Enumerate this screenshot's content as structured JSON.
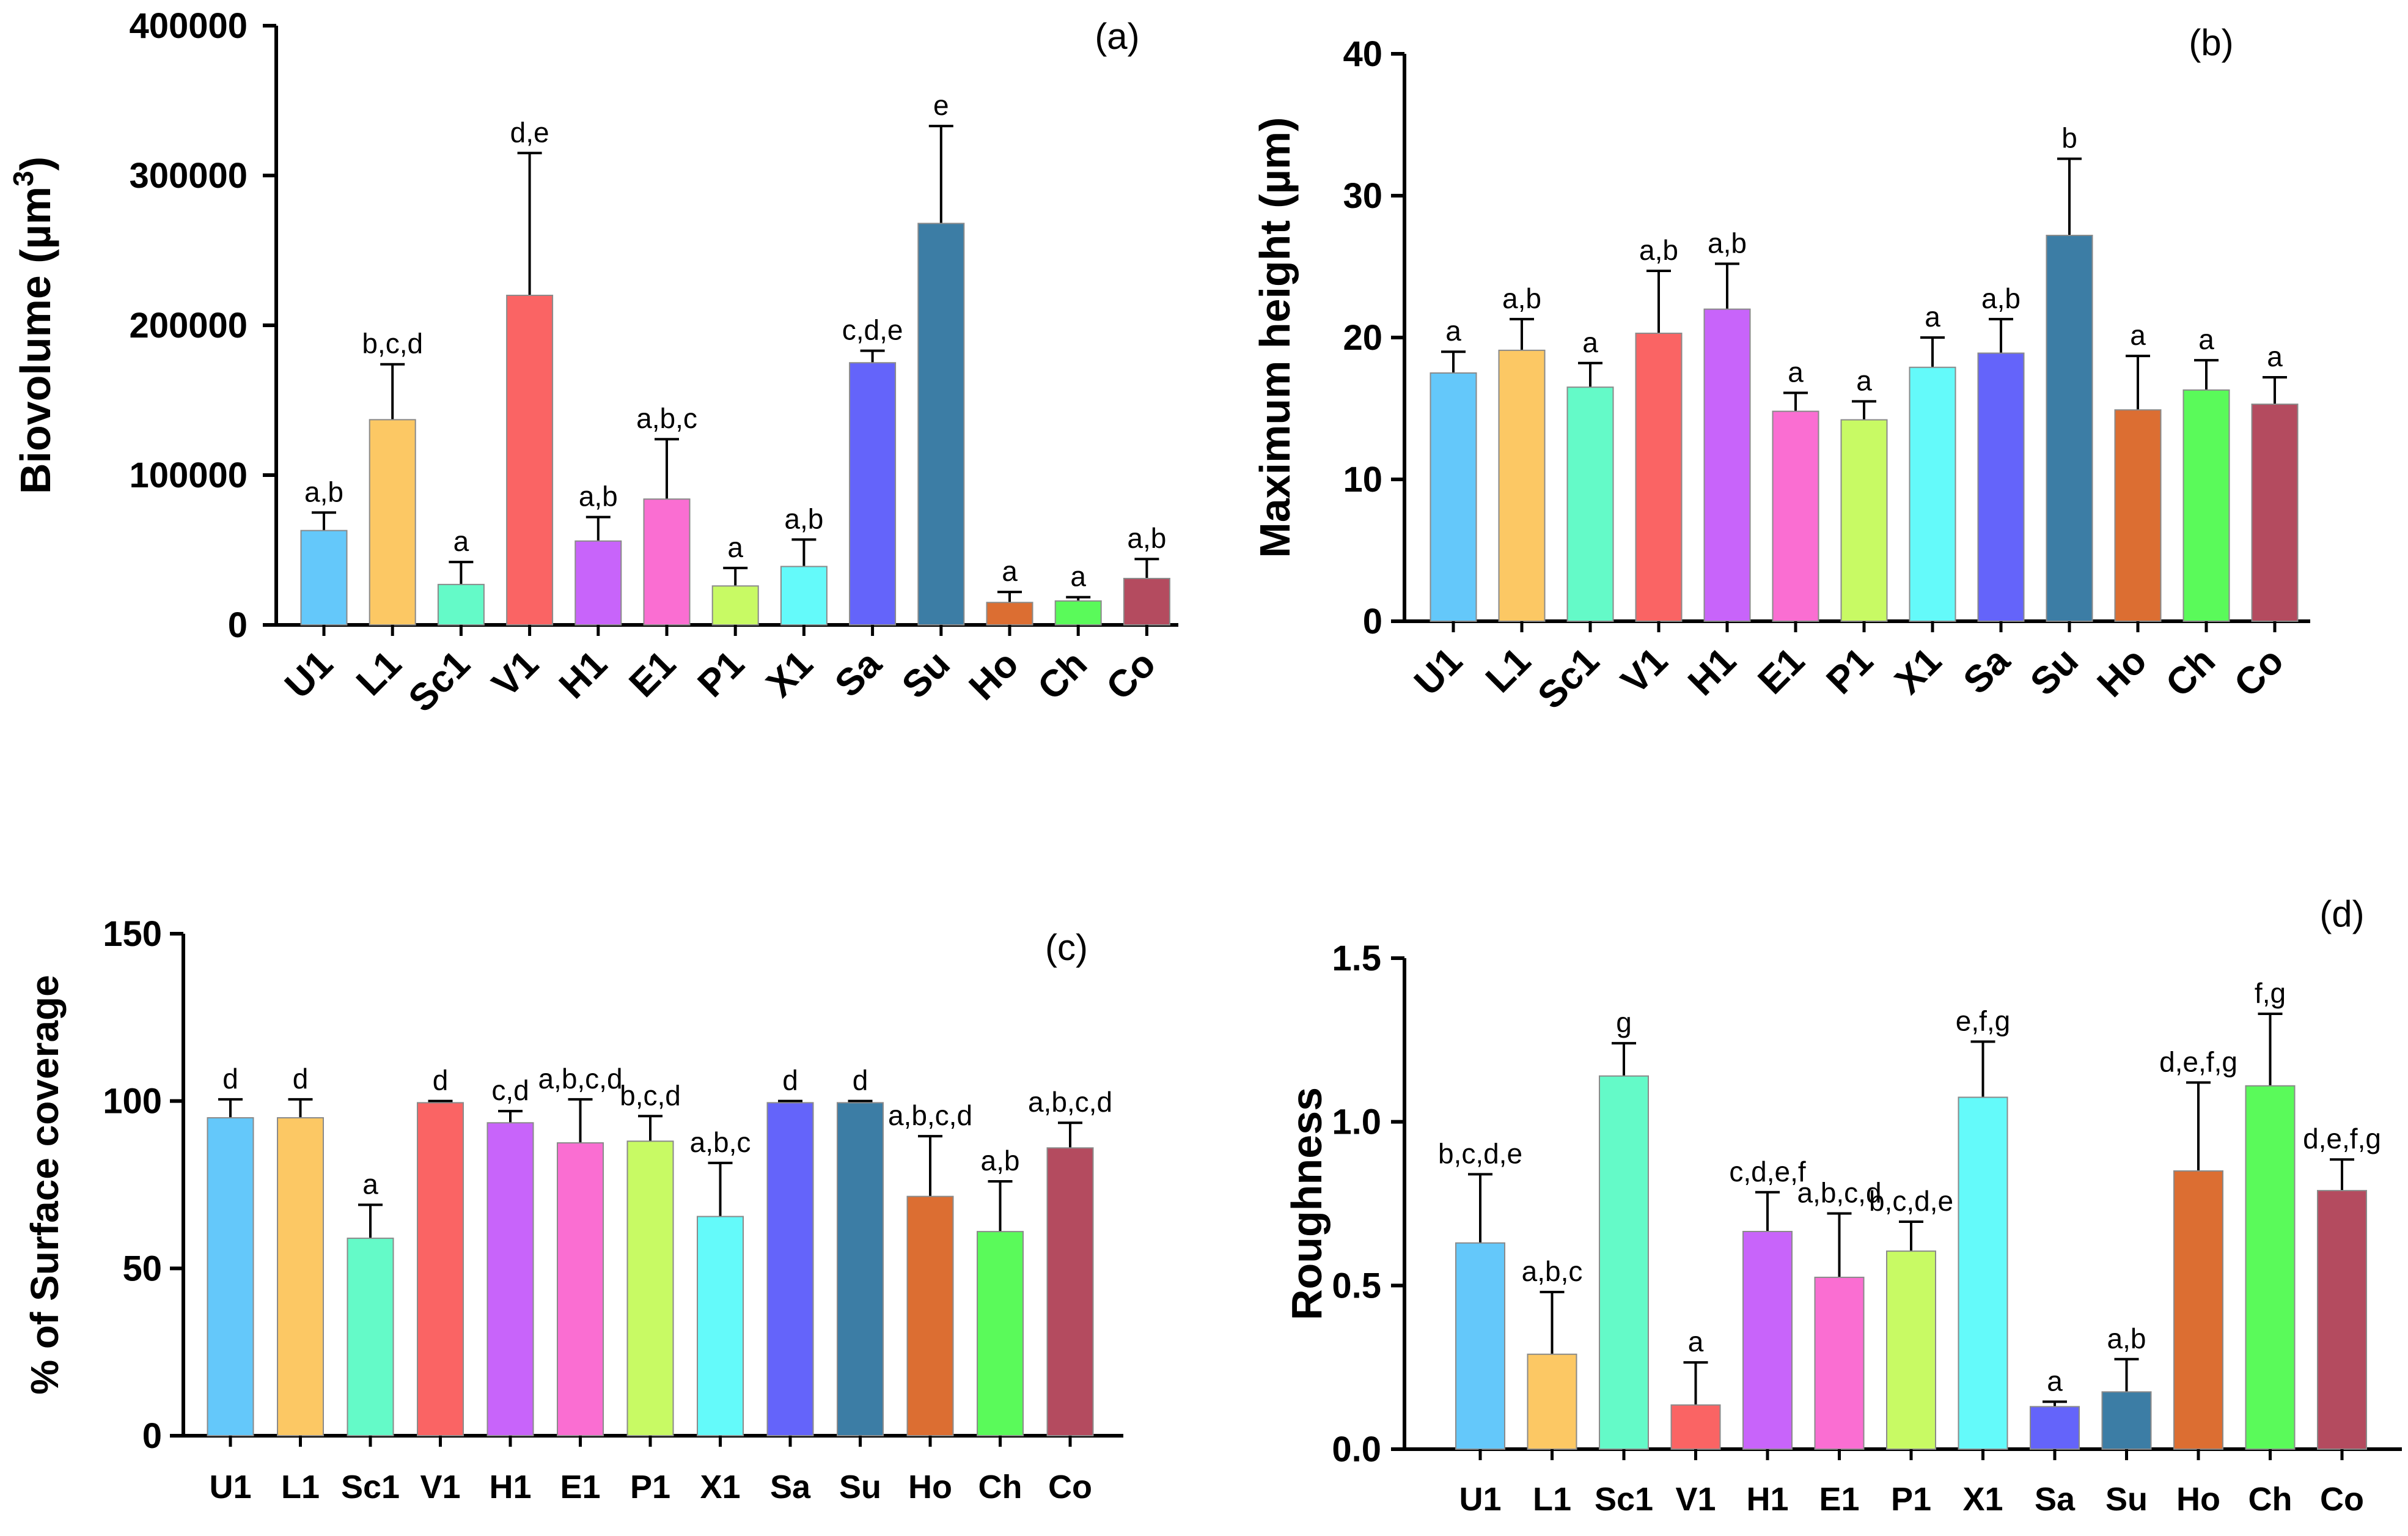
{
  "colors": {
    "U1": "#64C8FA",
    "L1": "#FCC864",
    "Sc1": "#64FAC8",
    "V1": "#FA6464",
    "H1": "#C864FA",
    "E1": "#FA6ED2",
    "P1": "#C8FA64",
    "X1": "#64FAFA",
    "Sa": "#6464FA",
    "Su": "#3C7DA5",
    "Ho": "#DC6E32",
    "Ch": "#5AFA5A",
    "Co": "#B44B5F"
  },
  "chart_data": [
    {
      "type": "bar",
      "panel": "(a)",
      "ylabel_main": "Biovolume (µm",
      "ylabel_sup": "3",
      "ylabel_end": ")",
      "ylim": [
        0,
        400000
      ],
      "yticks": [
        "0",
        "100000",
        "200000",
        "300000",
        "400000"
      ],
      "categories": [
        "U1",
        "L1",
        "Sc1",
        "V1",
        "H1",
        "E1",
        "P1",
        "X1",
        "Sa",
        "Su",
        "Ho",
        "Ch",
        "Co"
      ],
      "values": [
        63000,
        137000,
        27000,
        220000,
        56000,
        84000,
        26000,
        39000,
        175000,
        268000,
        15000,
        16000,
        31000
      ],
      "errors": [
        12000,
        37000,
        15000,
        95000,
        16000,
        40000,
        12000,
        18000,
        8000,
        65000,
        7000,
        2500,
        13000
      ],
      "labels": [
        "a,b",
        "b,c,d",
        "a",
        "d,e",
        "a,b",
        "a,b,c",
        "a",
        "a,b",
        "c,d,e",
        "e",
        "a",
        "a",
        "a,b"
      ]
    },
    {
      "type": "bar",
      "panel": "(b)",
      "ylabel_main": "Maximum height (µm)",
      "ylim": [
        0,
        40
      ],
      "yticks": [
        "0",
        "10",
        "20",
        "30",
        "40"
      ],
      "categories": [
        "U1",
        "L1",
        "Sc1",
        "V1",
        "H1",
        "E1",
        "P1",
        "X1",
        "Sa",
        "Su",
        "Ho",
        "Ch",
        "Co"
      ],
      "values": [
        17.5,
        19.1,
        16.5,
        20.3,
        22.0,
        14.8,
        14.2,
        17.9,
        18.9,
        27.2,
        14.9,
        16.3,
        15.3
      ],
      "errors": [
        1.5,
        2.2,
        1.7,
        4.4,
        3.2,
        1.3,
        1.3,
        2.1,
        2.4,
        5.4,
        3.8,
        2.1,
        1.9
      ],
      "labels": [
        "a",
        "a,b",
        "a",
        "a,b",
        "a,b",
        "a",
        "a",
        "a",
        "a,b",
        "b",
        "a",
        "a",
        "a"
      ]
    },
    {
      "type": "bar",
      "panel": "(c)",
      "ylabel_main": "% of Surface coverage",
      "ylim": [
        0,
        150
      ],
      "yticks": [
        "0",
        "50",
        "100",
        "150"
      ],
      "categories": [
        "U1",
        "L1",
        "Sc1",
        "V1",
        "H1",
        "E1",
        "P1",
        "X1",
        "Sa",
        "Su",
        "Ho",
        "Ch",
        "Co"
      ],
      "values": [
        95,
        95,
        59,
        99.5,
        93.5,
        87.5,
        88,
        65.5,
        99.5,
        99.5,
        71.5,
        61,
        86
      ],
      "errors": [
        5.5,
        5.5,
        10,
        0.5,
        3.5,
        13,
        7.5,
        16,
        0.5,
        0.5,
        18,
        15,
        7.5
      ],
      "labels": [
        "d",
        "d",
        "a",
        "d",
        "c,d",
        "a,b,c,d",
        "b,c,d",
        "a,b,c",
        "d",
        "d",
        "a,b,c,d",
        "a,b",
        "a,b,c,d"
      ]
    },
    {
      "type": "bar",
      "panel": "(d)",
      "ylabel_main": "Roughness",
      "ylim": [
        0,
        1.5
      ],
      "yticks": [
        "0.0",
        "0.5",
        "1.0",
        "1.5"
      ],
      "categories": [
        "U1",
        "L1",
        "Sc1",
        "V1",
        "H1",
        "E1",
        "P1",
        "X1",
        "Sa",
        "Su",
        "Ho",
        "Ch",
        "Co"
      ],
      "values": [
        0.63,
        0.29,
        1.14,
        0.135,
        0.665,
        0.525,
        0.605,
        1.075,
        0.13,
        0.175,
        0.85,
        1.11,
        0.79
      ],
      "errors": [
        0.21,
        0.19,
        0.1,
        0.13,
        0.12,
        0.195,
        0.09,
        0.17,
        0.015,
        0.1,
        0.27,
        0.22,
        0.095
      ],
      "labels": [
        "b,c,d,e",
        "a,b,c",
        "g",
        "a",
        "c,d,e,f",
        "a,b,c,d",
        "b,c,d,e",
        "e,f,g",
        "a",
        "a,b",
        "d,e,f,g",
        "f,g",
        "d,e,f,g"
      ]
    }
  ]
}
